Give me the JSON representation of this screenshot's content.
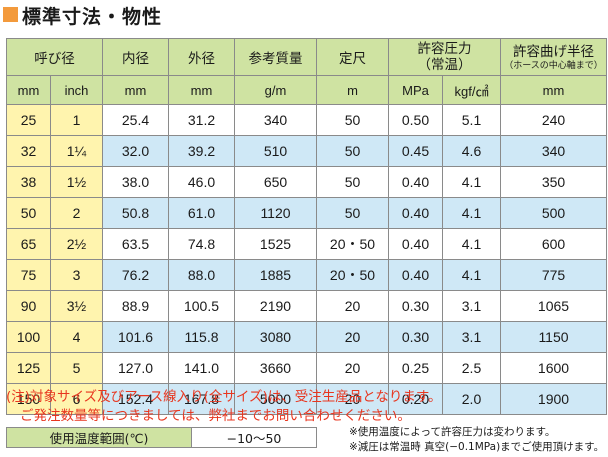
{
  "title": "標準寸法・物性",
  "headers": {
    "nominal": "呼び径",
    "inner": "内径",
    "outer": "外径",
    "mass": "参考質量",
    "length": "定尺",
    "pressure_l1": "許容圧力",
    "pressure_l2": "（常温）",
    "radius_l1": "許容曲げ半径",
    "radius_l2": "（ホースの中心軸まで）"
  },
  "units": {
    "mm": "mm",
    "inch": "inch",
    "inner": "mm",
    "outer": "mm",
    "mass": "g/m",
    "length": "m",
    "mpa": "MPa",
    "kgf": "kgf/㎠",
    "radius": "mm"
  },
  "rows": [
    {
      "mm": "25",
      "inch": "1",
      "inner": "25.4",
      "outer": "31.2",
      "mass": "340",
      "length": "50",
      "mpa": "0.50",
      "kgf": "5.1",
      "radius": "240"
    },
    {
      "mm": "32",
      "inch": "1¼",
      "inner": "32.0",
      "outer": "39.2",
      "mass": "510",
      "length": "50",
      "mpa": "0.45",
      "kgf": "4.6",
      "radius": "340"
    },
    {
      "mm": "38",
      "inch": "1½",
      "inner": "38.0",
      "outer": "46.0",
      "mass": "650",
      "length": "50",
      "mpa": "0.40",
      "kgf": "4.1",
      "radius": "350"
    },
    {
      "mm": "50",
      "inch": "2",
      "inner": "50.8",
      "outer": "61.0",
      "mass": "1120",
      "length": "50",
      "mpa": "0.40",
      "kgf": "4.1",
      "radius": "500"
    },
    {
      "mm": "65",
      "inch": "2½",
      "inner": "63.5",
      "outer": "74.8",
      "mass": "1525",
      "length": "20・50",
      "mpa": "0.40",
      "kgf": "4.1",
      "radius": "600"
    },
    {
      "mm": "75",
      "inch": "3",
      "inner": "76.2",
      "outer": "88.0",
      "mass": "1885",
      "length": "20・50",
      "mpa": "0.40",
      "kgf": "4.1",
      "radius": "775"
    },
    {
      "mm": "90",
      "inch": "3½",
      "inner": "88.9",
      "outer": "100.5",
      "mass": "2190",
      "length": "20",
      "mpa": "0.30",
      "kgf": "3.1",
      "radius": "1065"
    },
    {
      "mm": "100",
      "inch": "4",
      "inner": "101.6",
      "outer": "115.8",
      "mass": "3080",
      "length": "20",
      "mpa": "0.30",
      "kgf": "3.1",
      "radius": "1150"
    },
    {
      "mm": "125",
      "inch": "5",
      "inner": "127.0",
      "outer": "141.0",
      "mass": "3660",
      "length": "20",
      "mpa": "0.25",
      "kgf": "2.5",
      "radius": "1600"
    },
    {
      "mm": "150",
      "inch": "6",
      "inner": "152.4",
      "outer": "167.8",
      "mass": "5000",
      "length": "20",
      "mpa": "0.20",
      "kgf": "2.0",
      "radius": "1900"
    }
  ],
  "notes": {
    "line1": "(注)対象サイズ及びアース線入り(全サイズ)は、受注生産品となります。",
    "line2": "ご発注数量等につきましては、弊社までお問い合わせください。"
  },
  "temperature": {
    "label": "使用温度範囲(℃)",
    "value": "−10〜50"
  },
  "small_notes": {
    "line1": "※使用温度によって許容圧力は変わります。",
    "line2": "※減圧は常温時 真空(−0.1MPa)までご使用頂けます。"
  },
  "colors": {
    "header_green": "#cfe3a2",
    "size_yellow": "#fff4ae",
    "row_blue": "#cfe8f6",
    "note_red": "#e8361f",
    "title_orange": "#f39a3c"
  }
}
